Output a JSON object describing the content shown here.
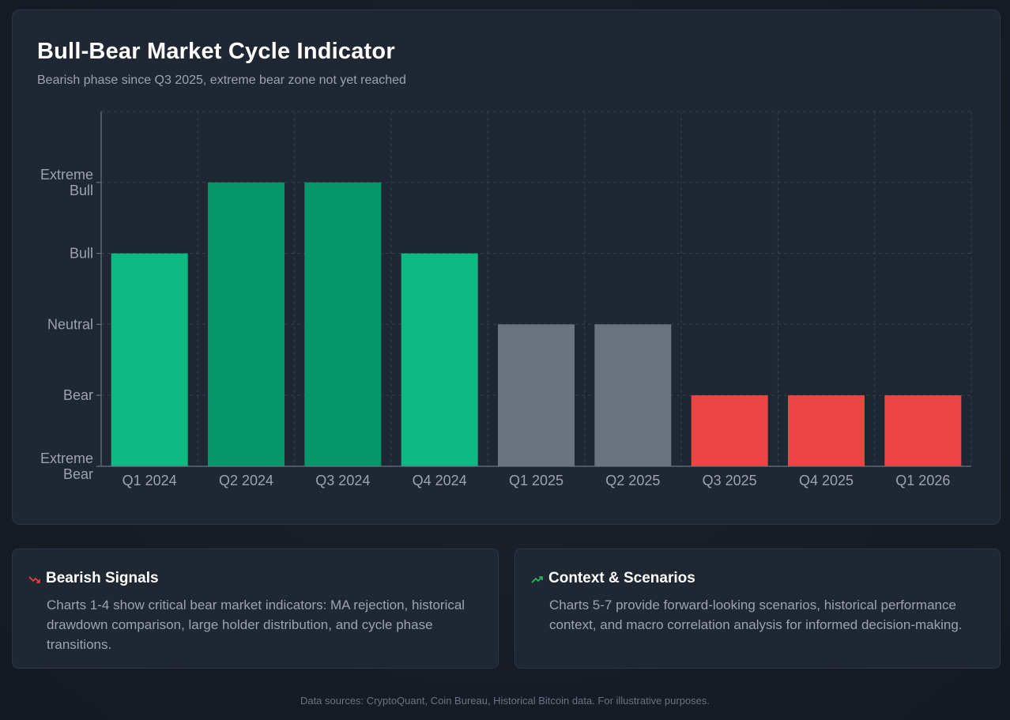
{
  "chart_data": {
    "type": "bar",
    "title": "Bull-Bear Market Cycle Indicator",
    "subtitle": "Bearish phase since Q3 2025, extreme bear zone not yet reached",
    "categories": [
      "Q1 2024",
      "Q2 2024",
      "Q3 2024",
      "Q4 2024",
      "Q1 2025",
      "Q2 2025",
      "Q3 2025",
      "Q4 2025",
      "Q1 2026"
    ],
    "values": [
      3,
      4,
      4,
      3,
      2,
      2,
      1,
      1,
      1
    ],
    "bar_colors": [
      "#10b981",
      "#059669",
      "#059669",
      "#10b981",
      "#6b7280",
      "#6b7280",
      "#ef4444",
      "#ef4444",
      "#ef4444"
    ],
    "ylim": [
      0,
      5
    ],
    "yticks": [
      {
        "value": 0,
        "label": [
          "Extreme",
          "Bear"
        ]
      },
      {
        "value": 1,
        "label": [
          "Bear"
        ]
      },
      {
        "value": 2,
        "label": [
          "Neutral"
        ]
      },
      {
        "value": 3,
        "label": [
          "Bull"
        ]
      },
      {
        "value": 4,
        "label": [
          "Extreme",
          "Bull"
        ]
      }
    ],
    "xlabel": "",
    "ylabel": "",
    "grid": true
  },
  "cards": [
    {
      "icon": "trending-down-icon",
      "icon_color": "#ef4444",
      "title": "Bearish Signals",
      "body": "Charts 1-4 show critical bear market indicators: MA rejection, historical drawdown comparison, large holder distribution, and cycle phase transitions."
    },
    {
      "icon": "trending-up-icon",
      "icon_color": "#22c55e",
      "title": "Context & Scenarios",
      "body": "Charts 5-7 provide forward-looking scenarios, historical performance context, and macro correlation analysis for informed decision-making."
    }
  ],
  "footer": "Data sources: CryptoQuant, Coin Bureau, Historical Bitcoin data. For illustrative purposes."
}
